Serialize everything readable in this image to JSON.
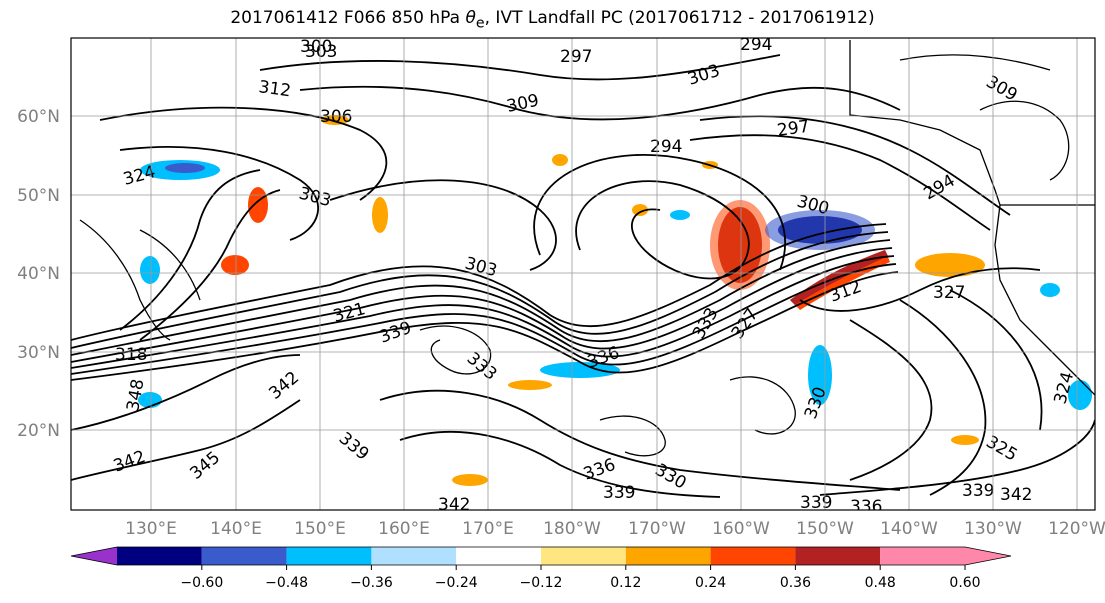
{
  "title": "2017061412 F066 850 hPa θe, IVT Landfall PC (2017061712 - 2017061912)",
  "title_parts": {
    "prefix": "2017061412 F066 850 hPa ",
    "theta": "θ",
    "sub": "e",
    "suffix": ", IVT Landfall PC (2017061712 - 2017061912)"
  },
  "lat_labels": [
    "60°N",
    "50°N",
    "40°N",
    "30°N",
    "20°N"
  ],
  "lon_labels": [
    "130°E",
    "140°E",
    "150°E",
    "160°E",
    "170°E",
    "180°W",
    "170°W",
    "160°W",
    "150°W",
    "140°W",
    "130°W",
    "120°W"
  ],
  "contour_labels": [
    "300",
    "303",
    "297",
    "294",
    "312",
    "309",
    "306",
    "303",
    "297",
    "294",
    "324",
    "303",
    "300",
    "303",
    "327",
    "333",
    "339",
    "318",
    "321",
    "342",
    "348",
    "336",
    "333",
    "327",
    "312",
    "339",
    "336",
    "330",
    "339",
    "330",
    "342",
    "345",
    "342",
    "339",
    "336",
    "339",
    "342",
    "324",
    "325",
    "309",
    "294"
  ],
  "colorbar": {
    "ticks": [
      "−0.60",
      "−0.48",
      "−0.36",
      "−0.24",
      "−0.12",
      "0.12",
      "0.24",
      "0.36",
      "0.48",
      "0.60"
    ],
    "colors": [
      "#9932cc",
      "#000080",
      "#3a5bcc",
      "#00bfff",
      "#b0e0ff",
      "#ffffff",
      "#ffe680",
      "#ffa500",
      "#ff4500",
      "#b22222",
      "#ff88aa"
    ]
  },
  "colors": {
    "frame": "#000000",
    "grid": "#9a9a9a",
    "tick_label": "#808080"
  }
}
